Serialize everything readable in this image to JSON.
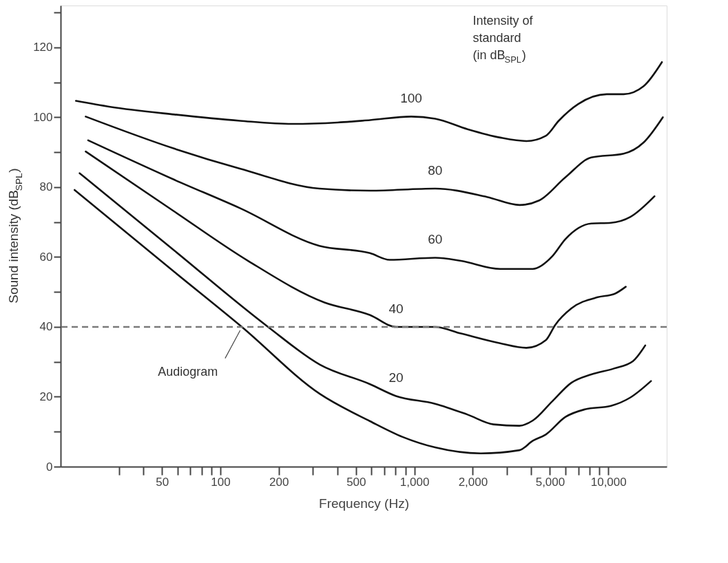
{
  "chart_data": {
    "type": "line",
    "xlabel": "Frequency (Hz)",
    "ylabel": "Sound intensity (dB$_{SPL}$)",
    "log": "x",
    "grid": false,
    "legend": false,
    "xlim": [
      15,
      20000
    ],
    "ylim": [
      0,
      132
    ],
    "xticks": [
      {
        "value": 30,
        "label": null
      },
      {
        "value": 40,
        "label": null
      },
      50,
      {
        "value": 60,
        "label": null
      },
      {
        "value": 70,
        "label": null
      },
      {
        "value": 80,
        "label": null
      },
      {
        "value": 90,
        "label": null
      },
      100,
      200,
      {
        "value": 300,
        "label": null
      },
      {
        "value": 400,
        "label": null
      },
      500,
      {
        "value": 600,
        "label": null
      },
      {
        "value": 700,
        "label": null
      },
      {
        "value": 800,
        "label": null
      },
      {
        "value": 900,
        "label": null
      },
      {
        "value": 1000,
        "label": "1,000"
      },
      {
        "value": 2000,
        "label": "2,000"
      },
      {
        "value": 3000,
        "label": null
      },
      {
        "value": 4000,
        "label": null
      },
      {
        "value": 5000,
        "label": "5,000"
      },
      {
        "value": 6000,
        "label": null
      },
      {
        "value": 7000,
        "label": null
      },
      {
        "value": 8000,
        "label": null
      },
      {
        "value": 9000,
        "label": null
      },
      {
        "value": 10000,
        "label": "10,000"
      }
    ],
    "yticks": [
      0,
      {
        "value": 10,
        "label": null
      },
      20,
      {
        "value": 30,
        "label": null
      },
      40,
      {
        "value": 50,
        "label": null
      },
      60,
      {
        "value": 70,
        "label": null
      },
      80,
      {
        "value": 90,
        "label": null
      },
      100,
      {
        "value": 110,
        "label": null
      },
      120,
      {
        "value": 130,
        "label": null
      }
    ],
    "series": [
      {
        "name": "100",
        "color": "#111111",
        "x": [
          18,
          27,
          58,
          126,
          234,
          402,
          591,
          963,
          1280,
          1880,
          2770,
          3790,
          4760,
          5550,
          7000,
          9810,
          12000,
          15200,
          18900
        ],
        "values": [
          104.7,
          103,
          100.8,
          99,
          98.1,
          98.5,
          99.2,
          100.2,
          99.6,
          96.6,
          94.2,
          93.2,
          94.7,
          99,
          103.8,
          106.6,
          106.6,
          108.9,
          115.8
        ]
      },
      {
        "name": "80",
        "color": "#111111",
        "x": [
          20.2,
          58,
          126,
          324,
          591,
          1280,
          2370,
          3490,
          4400,
          6000,
          8170,
          12000,
          15200,
          19100
        ],
        "values": [
          100.2,
          91,
          85.3,
          79.6,
          79,
          79.6,
          77.2,
          74.9,
          76.2,
          82.8,
          88.5,
          89.6,
          92.8,
          100
        ]
      },
      {
        "name": "60",
        "color": "#111111",
        "x": [
          20.8,
          58,
          126,
          324,
          591,
          745,
          1280,
          1740,
          2770,
          4080,
          5140,
          6000,
          8170,
          10300,
          13000,
          17300
        ],
        "values": [
          93.4,
          82.1,
          74,
          63.2,
          61.1,
          59.2,
          59.8,
          58.9,
          56.6,
          56.6,
          60.2,
          65.1,
          69.6,
          69.8,
          71.5,
          77.4
        ]
      },
      {
        "name": "40",
        "color": "#111111",
        "x": [
          20.2,
          58,
          139,
          344,
          591,
          805,
          1280,
          1740,
          2770,
          3790,
          4760,
          5330,
          6450,
          8820,
          10700,
          12300
        ],
        "values": [
          90.2,
          73,
          58.9,
          47,
          43.4,
          40,
          40,
          38.1,
          35.3,
          34,
          36.2,
          40.6,
          45.3,
          48.5,
          49.4,
          51.5
        ]
      },
      {
        "name": "20",
        "color": "#111111",
        "x": [
          18.8,
          58,
          176,
          326,
          591,
          805,
          1280,
          1880,
          2560,
          3480,
          4080,
          5140,
          6450,
          8170,
          10700,
          13400,
          15500
        ],
        "values": [
          84,
          61.8,
          40,
          29.2,
          23.6,
          20.2,
          18,
          14.9,
          12.1,
          11.7,
          13.2,
          18.7,
          24,
          26.4,
          28.1,
          30.2,
          34.7
        ]
      },
      {
        "color": "#111111",
        "x": [
          17.7,
          58,
          129,
          326,
          591,
          870,
          1280,
          2200,
          3480,
          4080,
          4760,
          6000,
          7570,
          10300,
          13000,
          16600
        ],
        "values": [
          79.2,
          55.7,
          40,
          20.8,
          13,
          8.5,
          5.5,
          3.8,
          4.7,
          7.4,
          9.2,
          14.2,
          16.4,
          17.4,
          19.8,
          24.5
        ]
      }
    ],
    "ref_lines": [
      {
        "axis": "y",
        "value": 40,
        "color": "#7a7a7a",
        "line_style": "dashed"
      }
    ],
    "annotations": [
      {
        "text": "Audiogram",
        "x": 129,
        "y": 40
      },
      "Intensity of\nstandard\n(in dB$_{SPL}$)"
    ]
  }
}
